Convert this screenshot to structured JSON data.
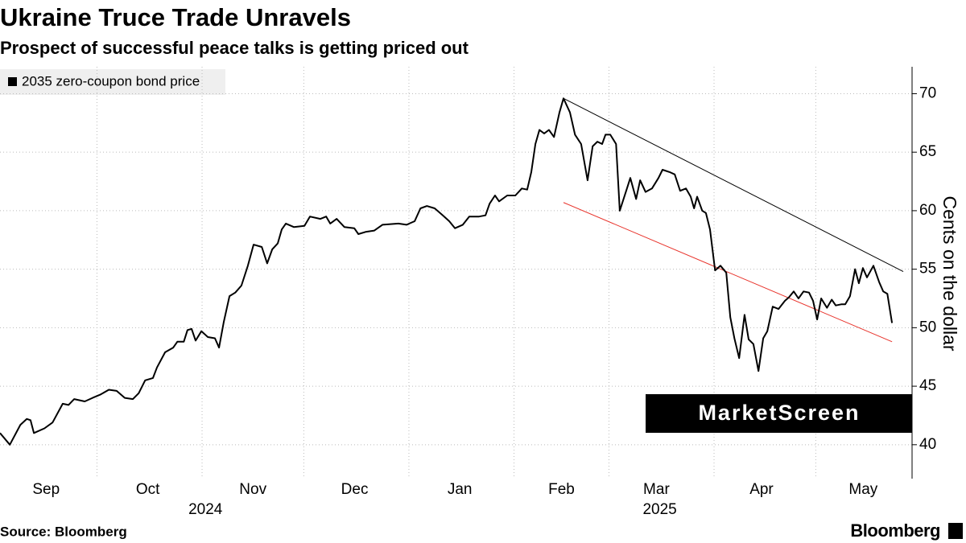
{
  "chart_data": {
    "type": "line",
    "title": "Ukraine Truce Trade Unravels",
    "subtitle": "Prospect of successful peace talks is getting priced out",
    "y_label": "Cents on the dollar",
    "source": "Source: Bloomberg",
    "brand": "Bloomberg",
    "watermark": "MarketScreen",
    "legend": "top-left",
    "grid": true,
    "x": [
      1.4,
      4.3,
      7.4,
      9.3,
      10.4,
      11.4,
      14.5,
      16.9,
      19.9,
      21.6,
      23.3,
      26.4,
      28.7,
      31.1,
      33.5,
      35.8,
      38.2,
      40.6,
      42.3,
      44.2,
      46.5,
      47.7,
      50.1,
      52.5,
      53.7,
      55.6,
      56.7,
      57.9,
      59.1,
      60.8,
      62.7,
      64.8,
      66.0,
      67.4,
      69.1,
      70.8,
      72.6,
      74.5,
      76.2,
      78.6,
      80.2,
      81.7,
      83.3,
      84.5,
      85.7,
      88.1,
      91.2,
      92.8,
      95.9,
      97.6,
      98.8,
      100.7,
      103.0,
      105.9,
      107.1,
      109.4,
      111.8,
      114.2,
      118.9,
      121.3,
      123.7,
      125.4,
      127.3,
      129.6,
      132.0,
      133.9,
      135.6,
      137.9,
      139.8,
      142.7,
      144.6,
      145.8,
      147.4,
      148.6,
      151.0,
      153.4,
      155.3,
      156.9,
      158.1,
      159.3,
      160.5,
      161.9,
      163.3,
      164.8,
      166.4,
      167.6,
      169.5,
      171.0,
      172.8,
      174.7,
      176.2,
      177.6,
      179.0,
      180.0,
      181.4,
      183.1,
      184.2,
      186.1,
      187.3,
      189.0,
      190.2,
      191.8,
      193.7,
      195.6,
      196.8,
      198.9,
      200.4,
      202.0,
      203.7,
      205.1,
      206.1,
      207.0,
      208.5,
      209.6,
      210.8,
      212.3,
      213.9,
      215.6,
      216.8,
      218.0,
      219.4,
      221.0,
      222.2,
      223.6,
      225.1,
      226.5,
      227.7,
      229.3,
      231.0,
      232.9,
      234.1,
      235.5,
      236.9,
      238.4,
      240.0,
      241.2,
      242.4,
      243.6,
      245.3,
      246.7,
      247.9,
      249.5,
      250.7,
      252.1,
      253.6,
      254.7,
      255.9,
      257.1,
      259.0,
      260.7,
      261.9,
      263.1,
      264.5
    ],
    "series": [
      {
        "name": "2035 zero-coupon bond price",
        "color": "#000000",
        "values": [
          41.0,
          40.0,
          41.7,
          42.2,
          42.1,
          41.0,
          41.4,
          41.9,
          43.5,
          43.4,
          43.9,
          43.7,
          44.0,
          44.3,
          44.7,
          44.6,
          44.0,
          43.9,
          44.4,
          45.5,
          45.7,
          46.6,
          47.9,
          48.3,
          48.8,
          48.8,
          49.8,
          49.9,
          48.9,
          49.7,
          49.2,
          49.1,
          48.3,
          50.5,
          52.7,
          53.0,
          53.6,
          55.3,
          57.1,
          56.9,
          55.5,
          56.7,
          57.2,
          58.4,
          58.9,
          58.6,
          58.7,
          59.5,
          59.3,
          59.5,
          58.9,
          59.3,
          58.6,
          58.5,
          58.0,
          58.2,
          58.3,
          58.8,
          58.9,
          58.8,
          59.1,
          60.2,
          60.4,
          60.2,
          59.6,
          59.1,
          58.5,
          58.8,
          59.5,
          59.5,
          59.6,
          60.6,
          61.3,
          60.8,
          61.3,
          61.3,
          61.9,
          61.8,
          63.3,
          65.7,
          66.9,
          66.6,
          66.9,
          66.3,
          68.4,
          69.6,
          68.4,
          66.5,
          65.7,
          62.6,
          65.5,
          65.9,
          65.7,
          66.5,
          66.5,
          65.7,
          60.0,
          61.7,
          62.8,
          61.0,
          62.6,
          61.6,
          61.9,
          62.8,
          63.5,
          63.3,
          63.1,
          61.7,
          61.9,
          61.2,
          60.2,
          61.2,
          60.0,
          59.8,
          58.4,
          54.9,
          55.3,
          54.7,
          50.9,
          49.1,
          47.4,
          51.1,
          49.0,
          48.6,
          46.3,
          49.1,
          49.7,
          51.8,
          51.6,
          52.3,
          52.6,
          53.1,
          52.5,
          53.1,
          53.0,
          52.3,
          50.7,
          52.5,
          51.7,
          52.4,
          51.9,
          52.0,
          52.0,
          52.7,
          55.0,
          53.8,
          55.1,
          54.3,
          55.3,
          53.9,
          53.1,
          52.9,
          50.4
        ]
      }
    ],
    "trendlines": [
      {
        "color": "#000000",
        "x": [
          167.6,
          267.8
        ],
        "values": [
          69.6,
          54.8
        ]
      },
      {
        "color": "#e8322a",
        "x": [
          167.6,
          264.5
        ],
        "values": [
          60.7,
          48.8
        ]
      }
    ],
    "xlim": [
      1.4,
      270.4
    ],
    "xgrid": [
      30,
      61,
      91,
      122,
      153,
      181,
      212,
      242
    ],
    "xticks": [
      {
        "value": 15,
        "label": "Sep"
      },
      {
        "value": 45,
        "label": "Oct"
      },
      {
        "value": 76,
        "label": "Nov"
      },
      {
        "value": 106,
        "label": "Dec"
      },
      {
        "value": 137,
        "label": "Jan"
      },
      {
        "value": 167,
        "label": "Feb"
      },
      {
        "value": 195,
        "label": "Mar"
      },
      {
        "value": 226,
        "label": "Apr"
      },
      {
        "value": 256,
        "label": "May"
      }
    ],
    "years": [
      {
        "value": 62,
        "label": "2024"
      },
      {
        "value": 196,
        "label": "2025"
      }
    ],
    "ylim": [
      37.1,
      72.3
    ],
    "yticks": [
      40,
      45,
      50,
      55,
      60,
      65,
      70
    ]
  }
}
